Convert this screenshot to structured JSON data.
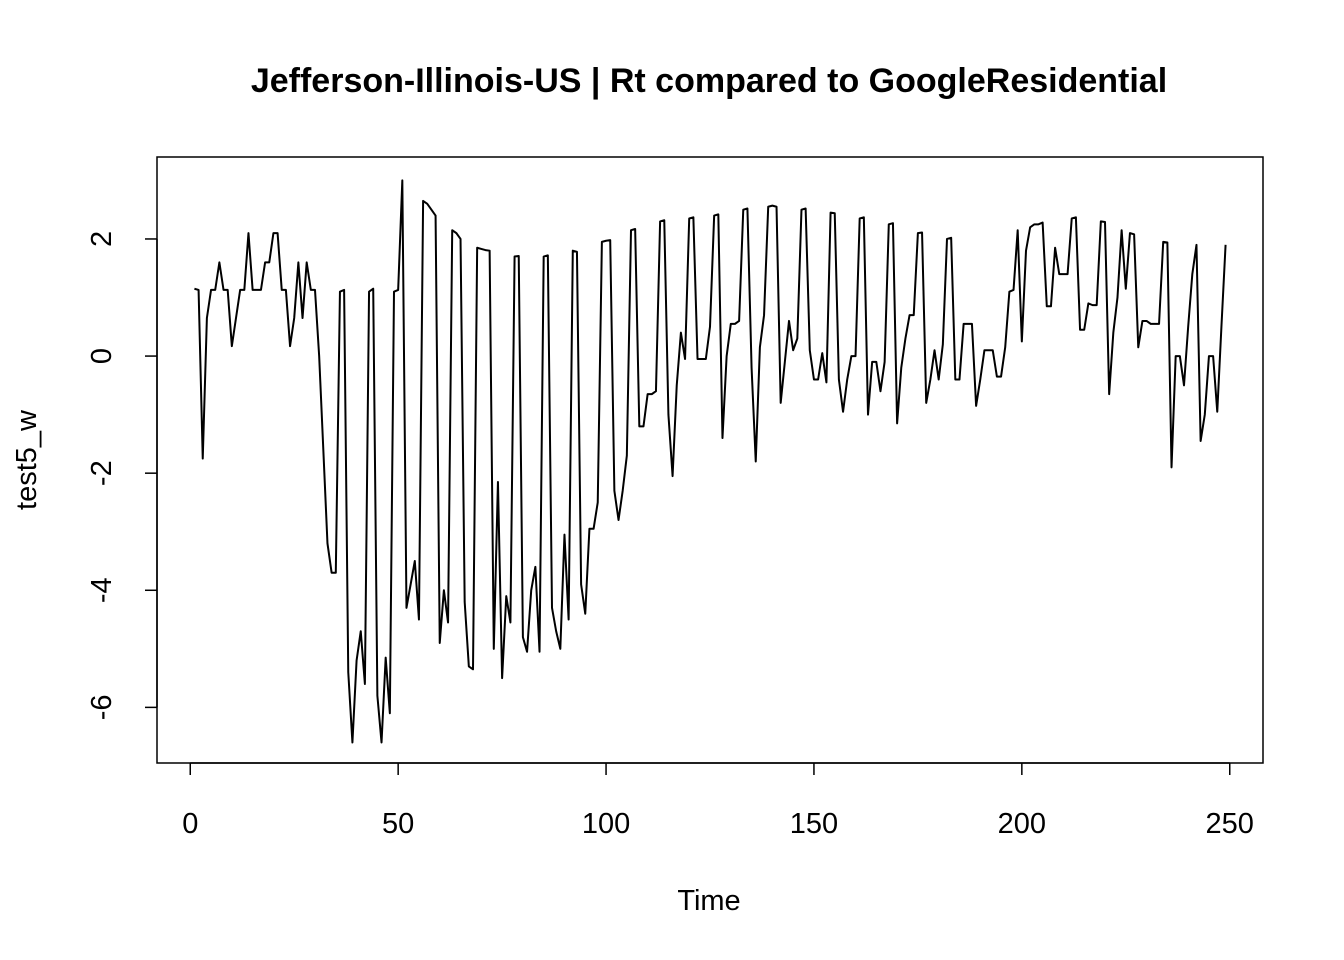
{
  "chart_data": {
    "type": "line",
    "title": "Jefferson-Illinois-US | Rt compared to GoogleResidential",
    "xlabel": "Time",
    "ylabel": "test5_w",
    "xlim": [
      -8,
      258
    ],
    "ylim": [
      -6.95,
      3.4
    ],
    "x_ticks": [
      0,
      50,
      100,
      150,
      200,
      250
    ],
    "x_tick_labels": [
      "0",
      "50",
      "100",
      "150",
      "200",
      "250"
    ],
    "y_ticks": [
      -6,
      -4,
      -2,
      0,
      2
    ],
    "y_tick_labels": [
      "-6",
      "-4",
      "-2",
      "0",
      "2"
    ],
    "grid": false,
    "legend": "none",
    "line_color": "#000000",
    "series": [
      {
        "x_start": 1,
        "values": [
          1.15,
          1.13,
          -1.75,
          0.65,
          1.13,
          1.13,
          1.6,
          1.13,
          1.13,
          0.17,
          0.65,
          1.13,
          1.13,
          2.1,
          1.13,
          1.13,
          1.13,
          1.6,
          1.6,
          2.1,
          2.1,
          1.13,
          1.13,
          0.17,
          0.65,
          1.6,
          0.65,
          1.6,
          1.13,
          1.13,
          0.0,
          -1.6,
          -3.2,
          -3.7,
          -3.7,
          1.1,
          1.13,
          -5.4,
          -6.6,
          -5.2,
          -4.7,
          -5.6,
          1.1,
          1.15,
          -5.8,
          -6.6,
          -5.15,
          -6.1,
          1.1,
          1.13,
          3.0,
          -4.3,
          -3.9,
          -3.5,
          -4.5,
          2.65,
          2.6,
          2.5,
          2.4,
          -4.9,
          -4.0,
          -4.55,
          2.15,
          2.1,
          2.0,
          -4.2,
          -5.3,
          -5.35,
          1.85,
          1.83,
          1.81,
          1.8,
          -5.0,
          -2.15,
          -5.5,
          -4.1,
          -4.55,
          1.7,
          1.71,
          -4.8,
          -5.05,
          -4.0,
          -3.6,
          -5.05,
          1.7,
          1.72,
          -4.3,
          -4.7,
          -5.0,
          -3.05,
          -4.5,
          1.8,
          1.78,
          -3.9,
          -4.4,
          -2.95,
          -2.95,
          -2.5,
          1.95,
          1.97,
          1.98,
          -2.3,
          -2.8,
          -2.3,
          -1.7,
          2.15,
          2.17,
          -1.2,
          -1.2,
          -0.65,
          -0.65,
          -0.6,
          2.3,
          2.32,
          -1.0,
          -2.05,
          -0.5,
          0.4,
          -0.05,
          2.35,
          2.37,
          -0.05,
          -0.05,
          -0.05,
          0.5,
          2.4,
          2.42,
          -1.4,
          0.0,
          0.55,
          0.55,
          0.6,
          2.5,
          2.52,
          -0.2,
          -1.8,
          0.15,
          0.7,
          2.55,
          2.57,
          2.55,
          -0.8,
          -0.1,
          0.6,
          0.1,
          0.3,
          2.5,
          2.52,
          0.1,
          -0.4,
          -0.4,
          0.05,
          -0.45,
          2.45,
          2.44,
          -0.4,
          -0.95,
          -0.4,
          0.0,
          0.0,
          2.35,
          2.37,
          -1.0,
          -0.1,
          -0.1,
          -0.6,
          -0.1,
          2.25,
          2.27,
          -1.15,
          -0.2,
          0.3,
          0.7,
          0.7,
          2.1,
          2.11,
          -0.8,
          -0.4,
          0.1,
          -0.4,
          0.2,
          2.0,
          2.02,
          -0.4,
          -0.4,
          0.55,
          0.55,
          0.55,
          -0.85,
          -0.4,
          0.1,
          0.1,
          0.1,
          -0.35,
          -0.35,
          0.15,
          1.1,
          1.13,
          2.15,
          0.25,
          1.8,
          2.2,
          2.25,
          2.25,
          2.28,
          0.85,
          0.85,
          1.85,
          1.4,
          1.4,
          1.4,
          2.35,
          2.37,
          0.45,
          0.45,
          0.9,
          0.87,
          0.87,
          2.3,
          2.29,
          -0.65,
          0.4,
          1.0,
          2.15,
          1.15,
          2.1,
          2.08,
          0.15,
          0.6,
          0.6,
          0.55,
          0.55,
          0.55,
          1.95,
          1.94,
          -1.9,
          0.0,
          0.0,
          -0.5,
          0.5,
          1.4,
          1.9,
          -1.45,
          -1.0,
          0.0,
          0.0,
          -0.95,
          0.5,
          1.9
        ]
      }
    ]
  }
}
